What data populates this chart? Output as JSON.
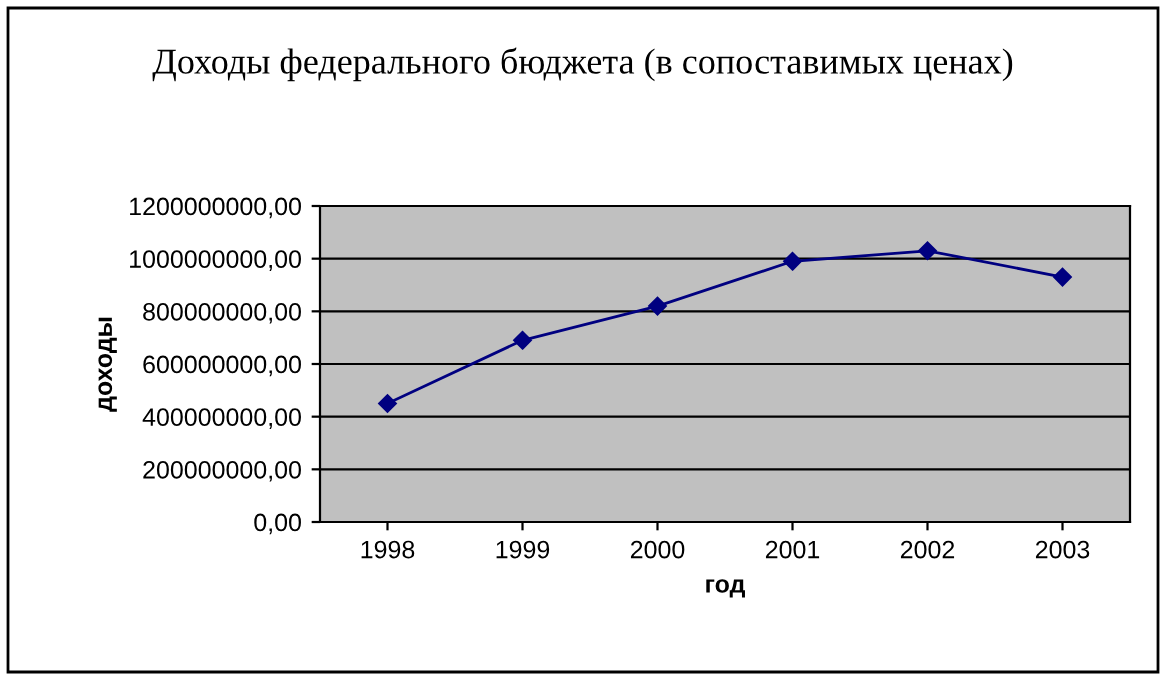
{
  "chart_data": {
    "type": "line",
    "title": "Доходы федерального бюджета (в сопоставимых ценах)",
    "xlabel": "год",
    "ylabel": "доходы",
    "categories": [
      "1998",
      "1999",
      "2000",
      "2001",
      "2002",
      "2003"
    ],
    "series": [
      {
        "color": "#000080",
        "values": [
          450000000,
          690000000,
          820000000,
          990000000,
          1030000000,
          930000000
        ]
      }
    ],
    "ylim": [
      0,
      1200000000
    ],
    "yticks": [
      {
        "value": 0,
        "label": "0,00"
      },
      {
        "value": 200000000,
        "label": "200000000,00"
      },
      {
        "value": 400000000,
        "label": "400000000,00"
      },
      {
        "value": 600000000,
        "label": "600000000,00"
      },
      {
        "value": 800000000,
        "label": "800000000,00"
      },
      {
        "value": 1000000000,
        "label": "1000000000,00"
      },
      {
        "value": 1200000000,
        "label": "1200000000,00"
      }
    ],
    "grid": "y",
    "marker": "diamond",
    "line_style": "solid",
    "legend": false
  }
}
